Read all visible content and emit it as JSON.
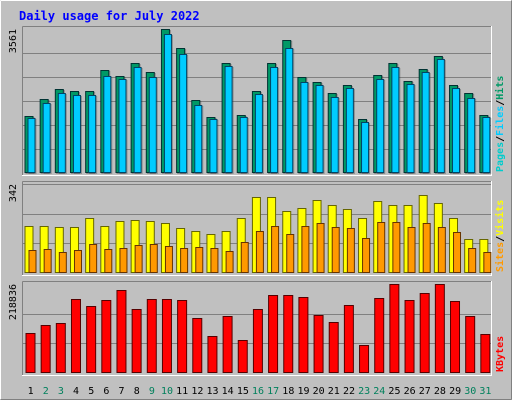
{
  "chart_data": {
    "type": "bar",
    "title": "Daily usage for July 2022",
    "categories": [
      "1",
      "2",
      "3",
      "4",
      "5",
      "6",
      "7",
      "8",
      "9",
      "10",
      "11",
      "12",
      "13",
      "14",
      "15",
      "16",
      "17",
      "18",
      "19",
      "20",
      "21",
      "22",
      "23",
      "24",
      "25",
      "26",
      "27",
      "28",
      "29",
      "30",
      "31"
    ],
    "weekend_days": [
      "2",
      "3",
      "9",
      "10",
      "16",
      "17",
      "23",
      "24",
      "30",
      "31"
    ],
    "panels": [
      {
        "id": "hits",
        "ymax_label": "3561",
        "ymax": 3561,
        "axis_label_parts": [
          "Pages",
          "/",
          "Files",
          "/",
          "Hits"
        ],
        "series": [
          {
            "name": "Hits",
            "color": "#006666",
            "values": [
              1420,
              1830,
              2080,
              2040,
              2030,
              2540,
              2400,
              2710,
              2490,
              3561,
              3100,
              1810,
              1390,
              2720,
              1440,
              2020,
              2720,
              3280,
              2370,
              2250,
              1990,
              2180,
              1330,
              2420,
              2730,
              2270,
              2580,
              2890,
              2180,
              1970,
              1440
            ]
          },
          {
            "name": "Files",
            "color": "#00ccff",
            "values": [
              1370,
              1730,
              1990,
              1940,
              1930,
              2400,
              2320,
              2620,
              2380,
              3440,
              2950,
              1690,
              1330,
              2650,
              1380,
              1950,
              2630,
              3080,
              2250,
              2170,
              1870,
              2110,
              1270,
              2330,
              2610,
              2200,
              2490,
              2810,
              2100,
              1860,
              1380
            ]
          }
        ]
      },
      {
        "id": "visits",
        "ymax_label": "342",
        "ymax": 342,
        "axis_label_parts": [
          "Sites",
          "/",
          "Visits"
        ],
        "series": [
          {
            "name": "Visits",
            "color": "#ffff00",
            "values": [
              182,
              180,
              176,
              177,
              210,
              180,
              199,
              202,
              199,
              193,
              171,
              163,
              148,
              161,
              211,
              291,
              291,
              240,
              251,
              279,
              261,
              245,
              210,
              275,
              261,
              263,
              298,
              270,
              210,
              130,
              129
            ]
          },
          {
            "name": "Sites",
            "color": "#ff9900",
            "values": [
              90,
              93,
              79,
              89,
              110,
              92,
              97,
              108,
              110,
              104,
              97,
              99,
              97,
              83,
              120,
              162,
              181,
              148,
              181,
              194,
              178,
              172,
              134,
              195,
              197,
              176,
              191,
              176,
              156,
              97,
              80
            ]
          }
        ]
      },
      {
        "id": "kbytes",
        "ymax_label": "218836",
        "ymax": 218836,
        "axis_label_parts": [
          "KBytes"
        ],
        "series": [
          {
            "name": "KBytes",
            "color": "#ff0000",
            "values": [
              98000,
              118000,
              124000,
              181000,
              164000,
              180000,
              204000,
              158000,
              181000,
              182000,
              180000,
              136000,
              92000,
              140000,
              80000,
              158000,
              192000,
              193000,
              186000,
              142000,
              125000,
              167000,
              68000,
              184000,
              218836,
              180000,
              197000,
              218000,
              178000,
              140000,
              95000
            ]
          }
        ]
      }
    ],
    "legend_colors": {
      "pages": "#00cccc",
      "files": "#00ccff",
      "hits": "#009966",
      "sites": "#ff9900",
      "visits": "#ffff00",
      "kbytes": "#ff0000",
      "title": "#0000ff",
      "weekday_label": "#000000",
      "weekend_label": "#00805c",
      "plot_bg": "#c0c0c0"
    }
  }
}
